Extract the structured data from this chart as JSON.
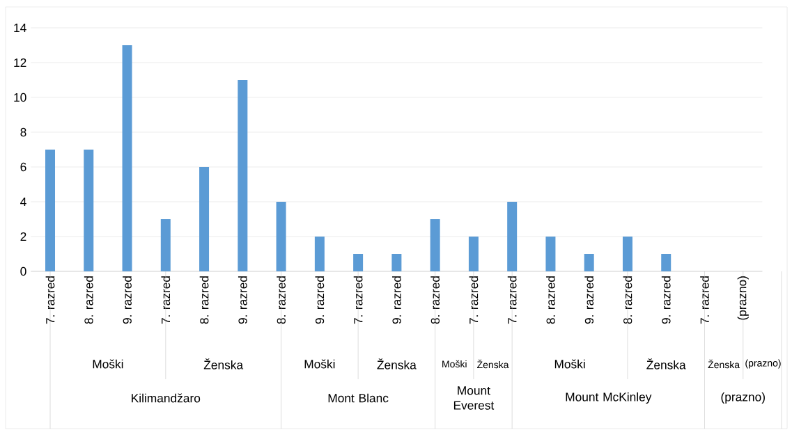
{
  "chart_data": {
    "type": "bar",
    "categories": [
      "7. razred",
      "8. razred",
      "9. razred",
      "7. razred",
      "8. razred",
      "9. razred",
      "8. razred",
      "9. razred",
      "7. razred",
      "9. razred",
      "8. razred",
      "7. razred",
      "7. razred",
      "8. razred",
      "9. razred",
      "8. razred",
      "9. razred",
      "7. razred",
      "(prazno)"
    ],
    "values": [
      7,
      7,
      13,
      3,
      6,
      11,
      4,
      2,
      1,
      1,
      3,
      2,
      4,
      2,
      1,
      2,
      1,
      null,
      null
    ],
    "color": "#5b9bd5",
    "ylim": [
      0,
      14
    ],
    "yticks": [
      0,
      2,
      4,
      6,
      8,
      10,
      12,
      14
    ],
    "grid": "y",
    "annotations": [
      "Moški",
      "Ženska",
      "Moški",
      "Ženska",
      "Moški",
      "Ženska",
      "Moški",
      "Ženska",
      "Ženska",
      "(prazno)",
      "Kilimandžaro",
      "Mont Blanc",
      "Mount Everest",
      "Mount McKinley",
      "(prazno)"
    ]
  }
}
